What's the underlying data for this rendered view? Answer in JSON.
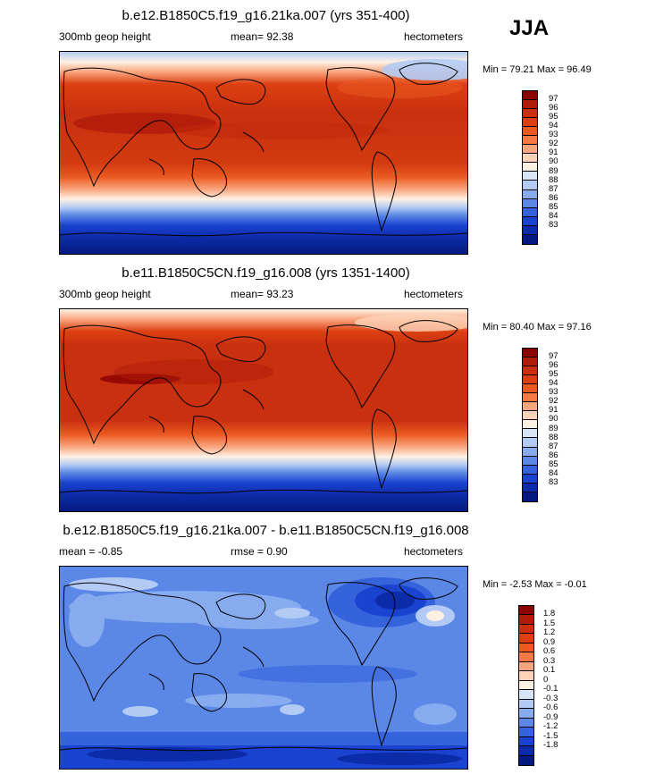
{
  "season": "JJA",
  "panels": [
    {
      "title": "b.e12.B1850C5.f19_g16.21ka.007 (yrs 351-400)",
      "left_label": "300mb geop height",
      "center_label": "mean=  92.38",
      "units": "hectometers",
      "minmax": "Min =  79.21 Max =  96.49",
      "colorbar": {
        "labels": [
          "97",
          "96",
          "95",
          "94",
          "93",
          "92",
          "91",
          "90",
          "89",
          "88",
          "87",
          "86",
          "85",
          "84",
          "83"
        ],
        "colors": [
          "#8b0000",
          "#b01c0a",
          "#c9300f",
          "#dc4012",
          "#ea5a22",
          "#f37a46",
          "#f9a57d",
          "#fcd3b8",
          "#fdf1e4",
          "#d8e5f9",
          "#b3cbf4",
          "#86abee",
          "#5b87e6",
          "#3463dc",
          "#1a43cf",
          "#0c2ba8",
          "#041a80"
        ]
      },
      "map_style": "absolute_a"
    },
    {
      "title": "b.e11.B1850C5CN.f19_g16.008 (yrs 1351-1400)",
      "left_label": "300mb geop height",
      "center_label": "mean=  93.23",
      "units": "hectometers",
      "minmax": "Min =  80.40 Max =  97.16",
      "colorbar": {
        "labels": [
          "97",
          "96",
          "95",
          "94",
          "93",
          "92",
          "91",
          "90",
          "89",
          "88",
          "87",
          "86",
          "85",
          "84",
          "83"
        ],
        "colors": [
          "#8b0000",
          "#b01c0a",
          "#c9300f",
          "#dc4012",
          "#ea5a22",
          "#f37a46",
          "#f9a57d",
          "#fcd3b8",
          "#fdf1e4",
          "#d8e5f9",
          "#b3cbf4",
          "#86abee",
          "#5b87e6",
          "#3463dc",
          "#1a43cf",
          "#0c2ba8",
          "#041a80"
        ]
      },
      "map_style": "absolute_b"
    },
    {
      "title": "b.e12.B1850C5.f19_g16.21ka.007 - b.e11.B1850C5CN.f19_g16.008",
      "left_label": "mean =  -0.85",
      "center_label": "rmse =   0.90",
      "units": "hectometers",
      "minmax": "Min =  -2.53 Max =  -0.01",
      "colorbar": {
        "labels": [
          "1.8",
          "1.5",
          "1.2",
          "0.9",
          "0.6",
          "0.3",
          "0.1",
          "0",
          "-0.1",
          "-0.3",
          "-0.6",
          "-0.9",
          "-1.2",
          "-1.5",
          "-1.8"
        ],
        "colors": [
          "#8b0000",
          "#b01c0a",
          "#c9300f",
          "#dc4012",
          "#ea5a22",
          "#f37a46",
          "#f9a57d",
          "#fcd3b8",
          "#fdf1e4",
          "#d8e5f9",
          "#b3cbf4",
          "#86abee",
          "#5b87e6",
          "#3463dc",
          "#1a43cf",
          "#0c2ba8",
          "#041a80"
        ]
      },
      "map_style": "difference"
    }
  ]
}
